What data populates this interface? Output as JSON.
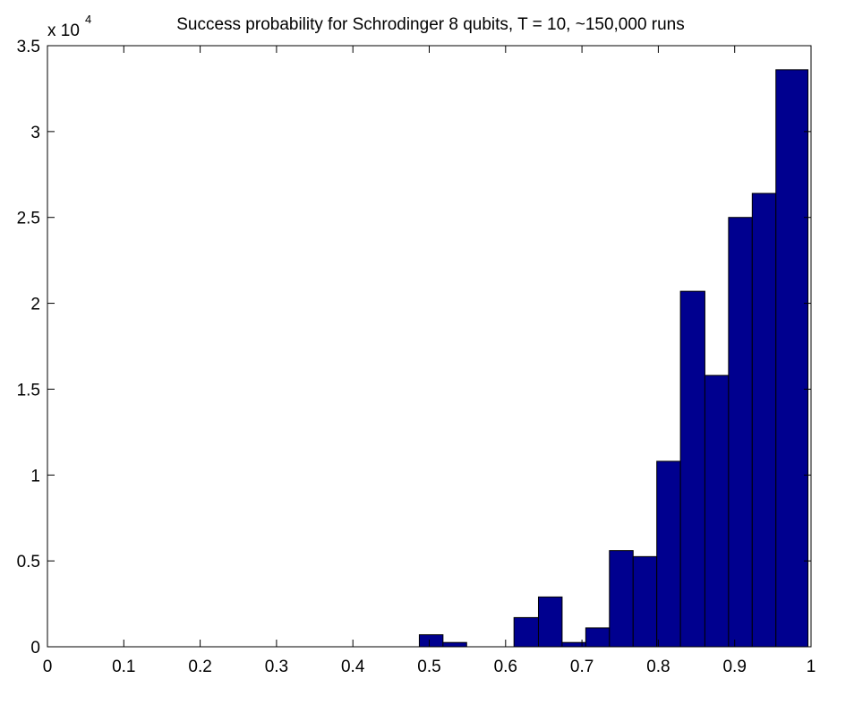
{
  "chart_data": {
    "type": "bar",
    "title": "Success probability for Schrodinger 8 qubits, T = 10, ~150,000 runs",
    "xlabel": "",
    "ylabel": "",
    "xlim": [
      0,
      1
    ],
    "ylim": [
      0,
      35000
    ],
    "y_multiplier": {
      "base": "x 10",
      "exponent": "4"
    },
    "x_ticks": [
      {
        "value": 0,
        "label": "0"
      },
      {
        "value": 0.1,
        "label": "0.1"
      },
      {
        "value": 0.2,
        "label": "0.2"
      },
      {
        "value": 0.3,
        "label": "0.3"
      },
      {
        "value": 0.4,
        "label": "0.4"
      },
      {
        "value": 0.5,
        "label": "0.5"
      },
      {
        "value": 0.6,
        "label": "0.6"
      },
      {
        "value": 0.7,
        "label": "0.7"
      },
      {
        "value": 0.8,
        "label": "0.8"
      },
      {
        "value": 0.9,
        "label": "0.9"
      },
      {
        "value": 1,
        "label": "1"
      }
    ],
    "y_ticks": [
      {
        "value": 0,
        "label": "0"
      },
      {
        "value": 5000,
        "label": "0.5"
      },
      {
        "value": 10000,
        "label": "1"
      },
      {
        "value": 15000,
        "label": "1.5"
      },
      {
        "value": 20000,
        "label": "2"
      },
      {
        "value": 25000,
        "label": "2.5"
      },
      {
        "value": 30000,
        "label": "3"
      },
      {
        "value": 35000,
        "label": "3.5"
      }
    ],
    "bar_color": "#00008f",
    "bins": [
      {
        "x0": 0.487,
        "x1": 0.518,
        "value": 700
      },
      {
        "x0": 0.518,
        "x1": 0.549,
        "value": 250
      },
      {
        "x0": 0.549,
        "x1": 0.58,
        "value": 0
      },
      {
        "x0": 0.58,
        "x1": 0.611,
        "value": 0
      },
      {
        "x0": 0.611,
        "x1": 0.643,
        "value": 1700
      },
      {
        "x0": 0.643,
        "x1": 0.674,
        "value": 2900
      },
      {
        "x0": 0.674,
        "x1": 0.705,
        "value": 250
      },
      {
        "x0": 0.705,
        "x1": 0.736,
        "value": 1100
      },
      {
        "x0": 0.736,
        "x1": 0.767,
        "value": 5600
      },
      {
        "x0": 0.767,
        "x1": 0.798,
        "value": 5250
      },
      {
        "x0": 0.798,
        "x1": 0.829,
        "value": 10800
      },
      {
        "x0": 0.829,
        "x1": 0.861,
        "value": 20700
      },
      {
        "x0": 0.861,
        "x1": 0.892,
        "value": 15800
      },
      {
        "x0": 0.892,
        "x1": 0.923,
        "value": 25000
      },
      {
        "x0": 0.923,
        "x1": 0.954,
        "value": 26400
      },
      {
        "x0": 0.954,
        "x1": 0.996,
        "value": 33600
      }
    ]
  }
}
